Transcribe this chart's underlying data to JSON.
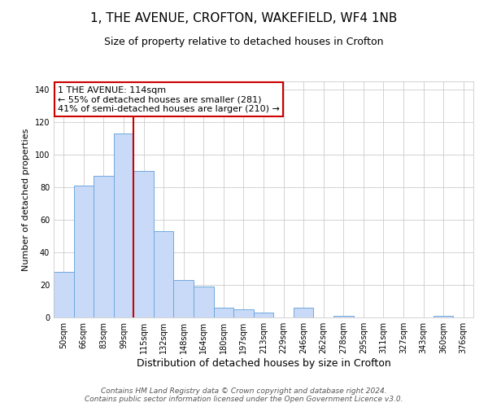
{
  "title": "1, THE AVENUE, CROFTON, WAKEFIELD, WF4 1NB",
  "subtitle": "Size of property relative to detached houses in Crofton",
  "xlabel": "Distribution of detached houses by size in Crofton",
  "ylabel": "Number of detached properties",
  "bar_labels": [
    "50sqm",
    "66sqm",
    "83sqm",
    "99sqm",
    "115sqm",
    "132sqm",
    "148sqm",
    "164sqm",
    "180sqm",
    "197sqm",
    "213sqm",
    "229sqm",
    "246sqm",
    "262sqm",
    "278sqm",
    "295sqm",
    "311sqm",
    "327sqm",
    "343sqm",
    "360sqm",
    "376sqm"
  ],
  "bar_values": [
    28,
    81,
    87,
    113,
    90,
    53,
    23,
    19,
    6,
    5,
    3,
    0,
    6,
    0,
    1,
    0,
    0,
    0,
    0,
    1,
    0
  ],
  "bar_color": "#c9daf8",
  "bar_edge_color": "#6fa8dc",
  "vline_index": 4,
  "vline_color": "#cc0000",
  "annotation_text": "1 THE AVENUE: 114sqm\n← 55% of detached houses are smaller (281)\n41% of semi-detached houses are larger (210) →",
  "annotation_box_color": "#ffffff",
  "annotation_box_edge": "#cc0000",
  "ylim": [
    0,
    145
  ],
  "yticks": [
    0,
    20,
    40,
    60,
    80,
    100,
    120,
    140
  ],
  "grid_color": "#cccccc",
  "bg_color": "#ffffff",
  "footer_line1": "Contains HM Land Registry data © Crown copyright and database right 2024.",
  "footer_line2": "Contains public sector information licensed under the Open Government Licence v3.0.",
  "title_fontsize": 11,
  "subtitle_fontsize": 9,
  "xlabel_fontsize": 9,
  "ylabel_fontsize": 8,
  "tick_fontsize": 7,
  "annotation_fontsize": 8,
  "footer_fontsize": 6.5
}
